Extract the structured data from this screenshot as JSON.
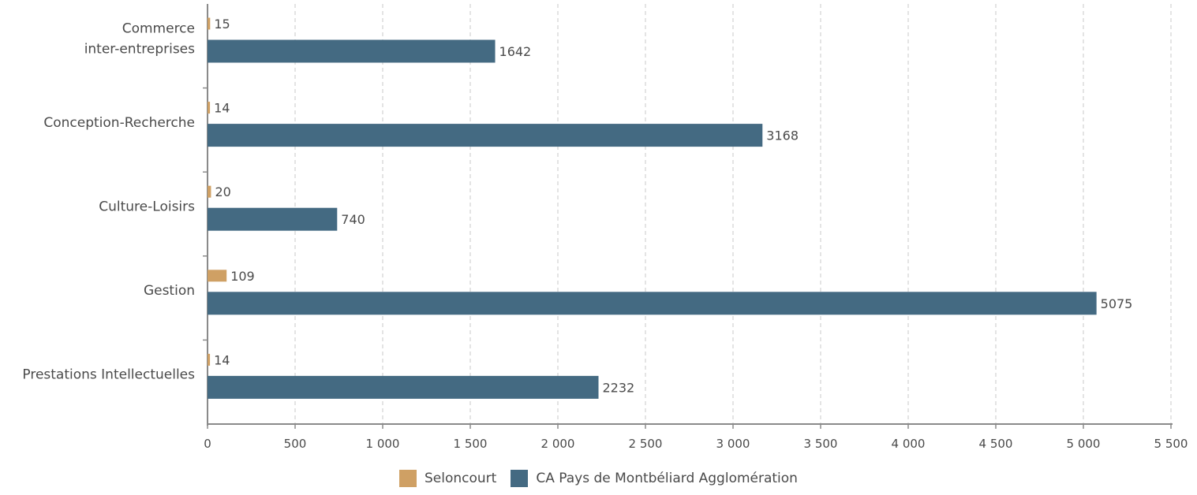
{
  "chart_data": {
    "type": "bar",
    "orientation": "horizontal",
    "categories": [
      [
        "Commerce",
        "inter-entreprises"
      ],
      [
        "Conception-Recherche"
      ],
      [
        "Culture-Loisirs"
      ],
      [
        "Gestion"
      ],
      [
        "Prestations Intellectuelles"
      ]
    ],
    "series": [
      {
        "name": "Seloncourt",
        "color": "#cfa064",
        "values": [
          15,
          14,
          20,
          109,
          14
        ]
      },
      {
        "name": "CA Pays de Montbéliard Agglomération",
        "color": "#446a82",
        "values": [
          1642,
          3168,
          740,
          5075,
          2232
        ]
      }
    ],
    "xlim": [
      0,
      5500
    ],
    "xticks": [
      0,
      500,
      1000,
      1500,
      2000,
      2500,
      3000,
      3500,
      4000,
      4500,
      5000,
      5500
    ],
    "xtick_labels": [
      "0",
      "500",
      "1 000",
      "1 500",
      "2 000",
      "2 500",
      "3 000",
      "3 500",
      "4 000",
      "4 500",
      "5 000",
      "5 500"
    ],
    "grid": "vertical dashed",
    "legend_position": "bottom-center",
    "title": "",
    "xlabel": "",
    "ylabel": ""
  }
}
